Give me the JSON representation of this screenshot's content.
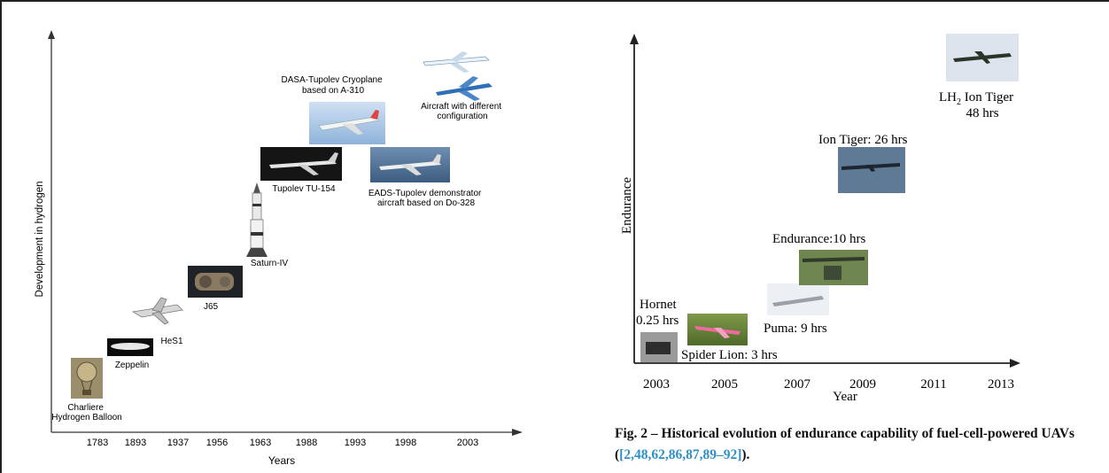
{
  "left_chart": {
    "y_axis_label": "Development in hydrogen",
    "x_axis_label": "Years",
    "x_ticks": [
      "1783",
      "1893",
      "1937",
      "1956",
      "1963",
      "1988",
      "1993",
      "1998",
      "2003"
    ],
    "milestones": [
      {
        "id": "balloon",
        "lines": [
          "Charliere",
          "Hydrogen Balloon"
        ]
      },
      {
        "id": "zeppelin",
        "lines": [
          "Zeppelin"
        ]
      },
      {
        "id": "hes1",
        "lines": [
          "HeS1"
        ]
      },
      {
        "id": "j65",
        "lines": [
          "J65"
        ]
      },
      {
        "id": "saturn",
        "lines": [
          "Saturn-IV"
        ]
      },
      {
        "id": "tu154",
        "lines": [
          "Tupolev TU-154"
        ]
      },
      {
        "id": "cryoplane",
        "lines": [
          "DASA-Tupolev Cryoplane",
          "based on A-310"
        ]
      },
      {
        "id": "eads",
        "lines": [
          "EADS-Tupolev demonstrator",
          "aircraft based on Do-328"
        ]
      },
      {
        "id": "different",
        "lines": [
          "Aircraft with different",
          "configuration"
        ]
      }
    ]
  },
  "right_chart": {
    "y_axis_label": "Endurance",
    "x_axis_label": "Year",
    "x_ticks": [
      "2003",
      "2005",
      "2007",
      "2009",
      "2011",
      "2013"
    ],
    "labels": {
      "hornet_1": "Hornet",
      "hornet_2": "0.25 hrs",
      "spider": "Spider Lion: 3 hrs",
      "puma": "Puma: 9 hrs",
      "endurance": "Endurance:10 hrs",
      "ion_tiger": "Ion Tiger: 26 hrs",
      "lh2_prefix": "LH",
      "lh2_sub": "2",
      "lh2_suffix": " Ion Tiger",
      "lh2_hours": "48 hrs"
    }
  },
  "caption": {
    "text": "Fig. 2 – Historical evolution of endurance capability of fuel-cell-powered UAVs (",
    "refs": "[2,48,62,86,87,89–92]",
    "end": ")."
  }
}
